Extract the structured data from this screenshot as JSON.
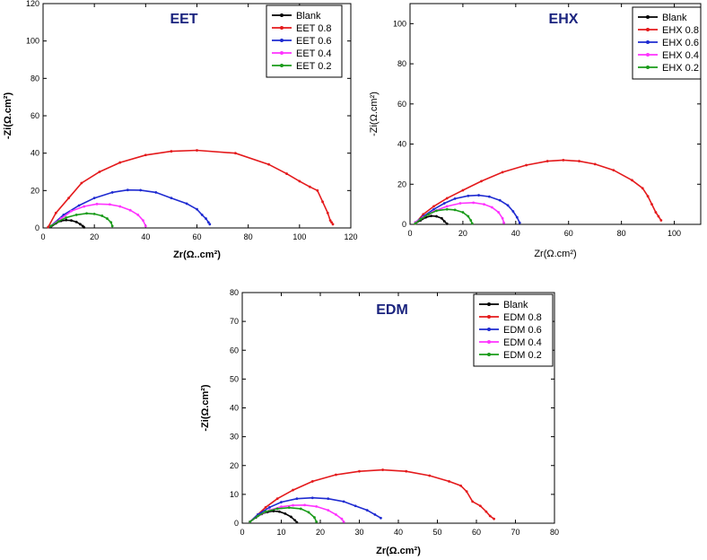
{
  "chart_data": [
    {
      "type": "line",
      "title": "EET",
      "xlabel": "Zr(Ω..cm²)",
      "ylabel": "-Zi(Ω.cm²)",
      "xlim": [
        0,
        120
      ],
      "ylim": [
        0,
        120
      ],
      "xticks": [
        0,
        20,
        40,
        60,
        80,
        100,
        120
      ],
      "yticks": [
        0,
        20,
        40,
        60,
        80,
        100,
        120
      ],
      "legend_position": "top-right",
      "series": [
        {
          "name": "Blank",
          "color": "#000000",
          "x": [
            3,
            5,
            7,
            9,
            11,
            13,
            14.5,
            15.5,
            16
          ],
          "y": [
            0.5,
            2.5,
            3.8,
            4.2,
            4.0,
            3.2,
            2.0,
            1.0,
            0.3
          ]
        },
        {
          "name": "EET 0.8",
          "color": "#e41a1c",
          "x": [
            2,
            5,
            10,
            15,
            22,
            30,
            40,
            50,
            60,
            75,
            88,
            95,
            100,
            104,
            107,
            109,
            111,
            112,
            112.5,
            113
          ],
          "y": [
            0.5,
            8,
            16,
            24,
            30,
            35,
            39,
            41,
            41.5,
            40,
            34,
            29,
            25,
            22,
            20,
            14,
            8,
            4,
            3,
            2
          ]
        },
        {
          "name": "EET 0.6",
          "color": "#1f2bd1",
          "x": [
            3,
            8,
            14,
            20,
            27,
            33,
            38,
            44,
            50,
            56,
            60,
            62,
            63.5,
            64.5,
            65
          ],
          "y": [
            1,
            7,
            12,
            16,
            19,
            20.3,
            20.2,
            19,
            16,
            13,
            10,
            7,
            5,
            3,
            2
          ]
        },
        {
          "name": "EET 0.4",
          "color": "#ff33ff",
          "x": [
            3,
            7,
            11,
            16,
            21,
            26,
            30,
            34,
            37,
            39,
            40
          ],
          "y": [
            1,
            5,
            9,
            11.5,
            12.8,
            12.6,
            11.5,
            9.5,
            7,
            4,
            1
          ]
        },
        {
          "name": "EET 0.2",
          "color": "#1a9b1a",
          "x": [
            3,
            6,
            9,
            13,
            17,
            20,
            23,
            25,
            26.5,
            27
          ],
          "y": [
            1,
            3.5,
            5.5,
            7,
            7.8,
            7.5,
            6.5,
            5,
            3,
            1
          ]
        }
      ]
    },
    {
      "type": "line",
      "title": "EHX",
      "xlabel": "Zr(Ω.cm²)",
      "ylabel": "-Zi(Ω.cm²)",
      "xlim": [
        0,
        110
      ],
      "ylim": [
        0,
        110
      ],
      "xticks": [
        0,
        20,
        40,
        60,
        80,
        100
      ],
      "yticks": [
        0,
        20,
        40,
        60,
        80,
        100
      ],
      "legend_position": "top-right",
      "series": [
        {
          "name": "Blank",
          "color": "#000000",
          "x": [
            2,
            4,
            6,
            8,
            10,
            12,
            13,
            14
          ],
          "y": [
            0.5,
            2,
            3.5,
            4.2,
            4,
            3,
            1.5,
            0.3
          ]
        },
        {
          "name": "EHX 0.8",
          "color": "#e41a1c",
          "x": [
            2,
            5,
            9,
            14,
            20,
            27,
            35,
            44,
            52,
            58,
            64,
            70,
            77,
            84,
            88,
            90,
            91.5,
            93,
            94,
            95
          ],
          "y": [
            0.5,
            5,
            9,
            13,
            17,
            21.5,
            26,
            29.5,
            31.5,
            32,
            31.5,
            30,
            27,
            22,
            18,
            14,
            10,
            6,
            4,
            2
          ]
        },
        {
          "name": "EHX 0.6",
          "color": "#1f2bd1",
          "x": [
            2,
            5,
            9,
            13,
            17,
            22,
            26,
            30,
            34,
            37,
            39,
            40.5,
            41.5
          ],
          "y": [
            1,
            4,
            7.5,
            10.5,
            12.8,
            14.2,
            14.5,
            13.8,
            12,
            9.5,
            6.5,
            3.5,
            0.8
          ]
        },
        {
          "name": "EHX 0.4",
          "color": "#ff33ff",
          "x": [
            2,
            5,
            9,
            14,
            19,
            24,
            28,
            31,
            33.5,
            35,
            35.5
          ],
          "y": [
            1,
            3.5,
            6.5,
            9,
            10.5,
            10.8,
            10,
            8.5,
            6,
            3,
            0.8
          ]
        },
        {
          "name": "EHX 0.2",
          "color": "#1a9b1a",
          "x": [
            2,
            4,
            7,
            10,
            14,
            17,
            20,
            22,
            23,
            23.5
          ],
          "y": [
            0.5,
            2.5,
            5,
            6.8,
            7.5,
            7.2,
            6,
            4,
            2,
            0.5
          ]
        }
      ]
    },
    {
      "type": "line",
      "title": "EDM",
      "xlabel": "Zr(Ω.cm²)",
      "ylabel": "-Zi(Ω.cm²)",
      "xlim": [
        0,
        80
      ],
      "ylim": [
        0,
        80
      ],
      "xticks": [
        0,
        10,
        20,
        30,
        40,
        50,
        60,
        70,
        80
      ],
      "yticks": [
        0,
        10,
        20,
        30,
        40,
        50,
        60,
        70,
        80
      ],
      "legend_position": "top-right",
      "series": [
        {
          "name": "Blank",
          "color": "#000000",
          "x": [
            2,
            3.5,
            5,
            6.5,
            8,
            9.5,
            11,
            12.5,
            13.5,
            14
          ],
          "y": [
            0.5,
            2,
            3.2,
            3.9,
            4.2,
            4,
            3.3,
            2.2,
            1,
            0.3
          ]
        },
        {
          "name": "EDM 0.8",
          "color": "#e41a1c",
          "x": [
            2,
            4,
            6,
            9,
            13,
            18,
            24,
            30,
            36,
            42,
            48,
            53,
            56,
            57.5,
            59,
            61,
            62.5,
            63.5,
            64.5
          ],
          "y": [
            0.5,
            3,
            5.5,
            8.5,
            11.5,
            14.5,
            16.8,
            18,
            18.5,
            18,
            16.5,
            14.5,
            13,
            11,
            7.5,
            6,
            4,
            2.5,
            1.5
          ]
        },
        {
          "name": "EDM 0.6",
          "color": "#1f2bd1",
          "x": [
            2,
            4,
            7,
            10,
            14,
            18,
            22,
            26,
            29,
            32,
            34,
            35.5
          ],
          "y": [
            0.5,
            3,
            5.5,
            7.3,
            8.5,
            8.8,
            8.5,
            7.5,
            6,
            4.5,
            3,
            1.8
          ]
        },
        {
          "name": "EDM 0.4",
          "color": "#ff33ff",
          "x": [
            2,
            4,
            7,
            10,
            13,
            16,
            19,
            22,
            24,
            25.5,
            26
          ],
          "y": [
            0.5,
            2.5,
            4.5,
            5.7,
            6.2,
            6.3,
            5.8,
            4.5,
            3,
            1.5,
            0.5
          ]
        },
        {
          "name": "EDM 0.2",
          "color": "#1a9b1a",
          "x": [
            2,
            4,
            6,
            9,
            12,
            15,
            17,
            18.5,
            19
          ],
          "y": [
            0.5,
            2.5,
            4,
            5,
            5.4,
            5,
            3.8,
            2,
            0.5
          ]
        }
      ]
    }
  ]
}
